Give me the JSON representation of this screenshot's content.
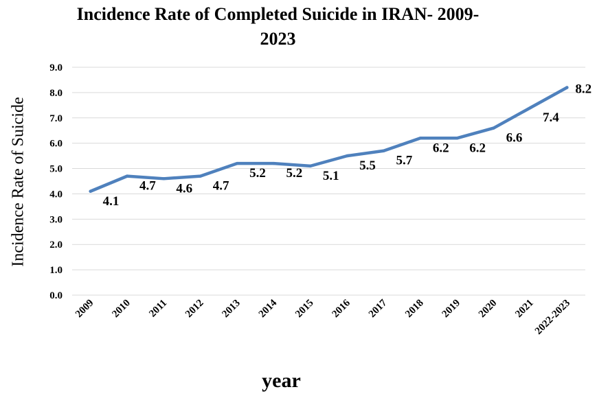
{
  "chart_data": {
    "type": "line",
    "title_line1": "Incidence Rate of Completed Suicide in IRAN- 2009-",
    "title_line2": "2023",
    "xlabel": "year",
    "ylabel": "Incidence  Rate of  Suicide",
    "categories": [
      "2009",
      "2010",
      "2011",
      "2012",
      "2013",
      "2014",
      "2015",
      "2016",
      "2017",
      "2018",
      "2019",
      "2020",
      "2021",
      "2022-2023"
    ],
    "values": [
      4.1,
      4.7,
      4.6,
      4.7,
      5.2,
      5.2,
      5.1,
      5.5,
      5.7,
      6.2,
      6.2,
      6.6,
      7.4,
      8.2
    ],
    "data_labels": [
      "4.1",
      "4.7",
      "4.6",
      "4.7",
      "5.2",
      "5.2",
      "5.1",
      "5.5",
      "5.7",
      "6.2",
      "6.2",
      "6.6",
      "7.4",
      "8.2"
    ],
    "y_ticks": [
      "0.0",
      "1.0",
      "2.0",
      "3.0",
      "4.0",
      "5.0",
      "6.0",
      "7.0",
      "8.0",
      "9.0"
    ],
    "ylim": [
      0,
      9
    ],
    "grid": true,
    "line_color": "#4F81BD",
    "grid_color": "#D9D9D9"
  }
}
